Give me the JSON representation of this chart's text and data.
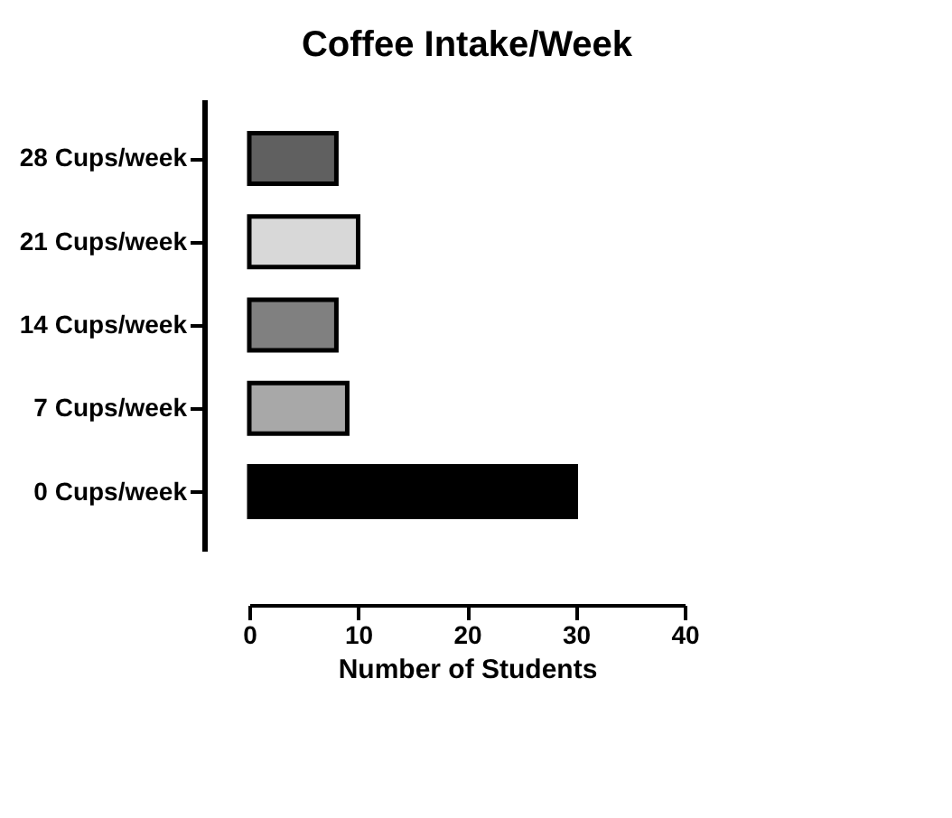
{
  "chart_data": {
    "type": "bar",
    "orientation": "horizontal",
    "title": "Coffee Intake/Week",
    "xlabel": "Number of Students",
    "categories": [
      "28 Cups/week",
      "21 Cups/week",
      "14 Cups/week",
      "7 Cups/week",
      "0 Cups/week"
    ],
    "values": [
      8,
      10,
      8,
      9,
      30
    ],
    "colors": [
      "#606060",
      "#d8d8d8",
      "#808080",
      "#a8a8a8",
      "#000000"
    ],
    "xlim": [
      0,
      40
    ],
    "xticks": [
      0,
      10,
      20,
      30,
      40
    ],
    "grid": false,
    "legend": false
  }
}
